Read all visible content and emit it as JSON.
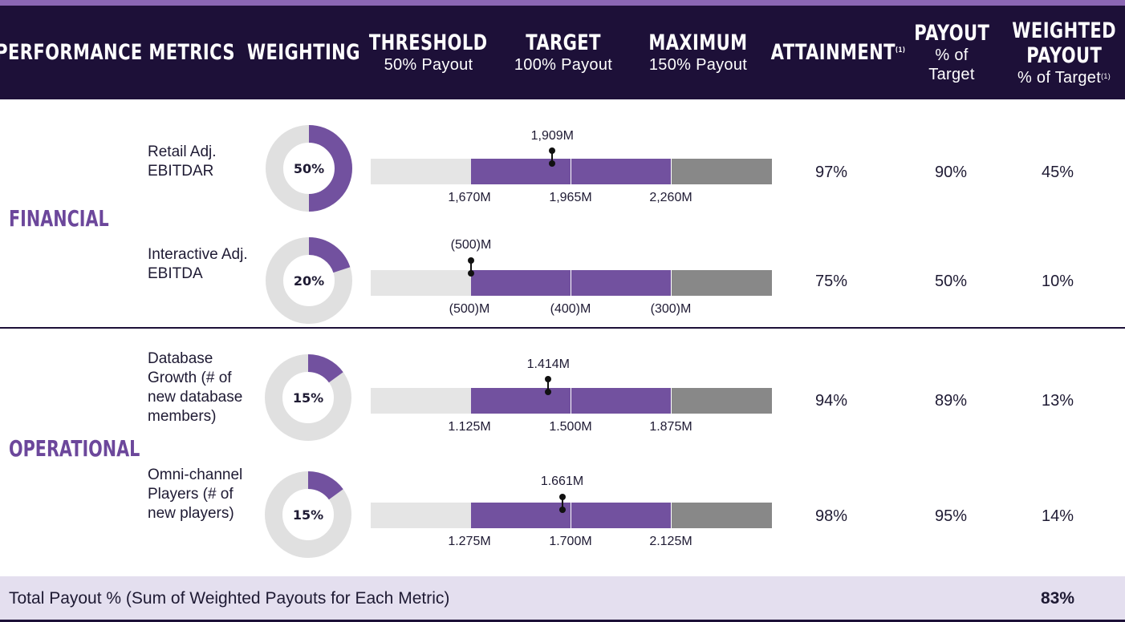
{
  "header": {
    "metrics": "PERFORMANCE METRICS",
    "weighting": "WEIGHTING",
    "threshold": "THRESHOLD",
    "threshold_sub": "50% Payout",
    "target": "TARGET",
    "target_sub": "100% Payout",
    "maximum": "MAXIMUM",
    "maximum_sub": "150% Payout",
    "attainment": "ATTAINMENT",
    "attainment_fn": "(1)",
    "payout": "PAYOUT",
    "payout_sub1": "% of",
    "payout_sub2": "Target",
    "weighted1": "WEIGHTED",
    "weighted2": "PAYOUT",
    "weighted_sub": "% of Target",
    "weighted_fn": "(1)"
  },
  "categories": {
    "financial": "FINANCIAL",
    "operational": "OPERATIONAL"
  },
  "colors": {
    "header_bg": "#1d1038",
    "accent": "#72519f",
    "category_text": "#6c479b",
    "below_threshold": "#e5e5e5",
    "above_target": "#888888",
    "donut_track": "#e0e0e0",
    "total_bg": "#e4dfef"
  },
  "chart_data": {
    "type": "bullet",
    "segments": [
      "threshold",
      "target",
      "maximum"
    ],
    "metrics": [
      {
        "category": "FINANCIAL",
        "name": "Retail Adj. EBITDAR",
        "weighting": 0.5,
        "weighting_label": "50%",
        "actual_label": "1,909M",
        "actual_value": 1909,
        "threshold_label": "1,670M",
        "threshold_value": 1670,
        "target_label": "1,965M",
        "target_value": 1965,
        "maximum_label": "2,260M",
        "maximum_value": 2260,
        "attainment": "97%",
        "payout": "90%",
        "weighted_payout": "45%"
      },
      {
        "category": "FINANCIAL",
        "name": "Interactive Adj. EBITDA",
        "weighting": 0.2,
        "weighting_label": "20%",
        "actual_label": "(500)M",
        "actual_value": -500,
        "threshold_label": "(500)M",
        "threshold_value": -500,
        "target_label": "(400)M",
        "target_value": -400,
        "maximum_label": "(300)M",
        "maximum_value": -300,
        "attainment": "75%",
        "payout": "50%",
        "weighted_payout": "10%"
      },
      {
        "category": "OPERATIONAL",
        "name": "Database Growth (# of new database members)",
        "weighting": 0.15,
        "weighting_label": "15%",
        "actual_label": "1.414M",
        "actual_value": 1.414,
        "threshold_label": "1.125M",
        "threshold_value": 1.125,
        "target_label": "1.500M",
        "target_value": 1.5,
        "maximum_label": "1.875M",
        "maximum_value": 1.875,
        "attainment": "94%",
        "payout": "89%",
        "weighted_payout": "13%"
      },
      {
        "category": "OPERATIONAL",
        "name": "Omni-channel Players (# of new players)",
        "weighting": 0.15,
        "weighting_label": "15%",
        "actual_label": "1.661M",
        "actual_value": 1.661,
        "threshold_label": "1.275M",
        "threshold_value": 1.275,
        "target_label": "1.700M",
        "target_value": 1.7,
        "maximum_label": "2.125M",
        "maximum_value": 2.125,
        "attainment": "98%",
        "payout": "95%",
        "weighted_payout": "14%"
      }
    ]
  },
  "total": {
    "label": "Total Payout % (Sum of Weighted Payouts for Each Metric)",
    "value": "83%"
  }
}
